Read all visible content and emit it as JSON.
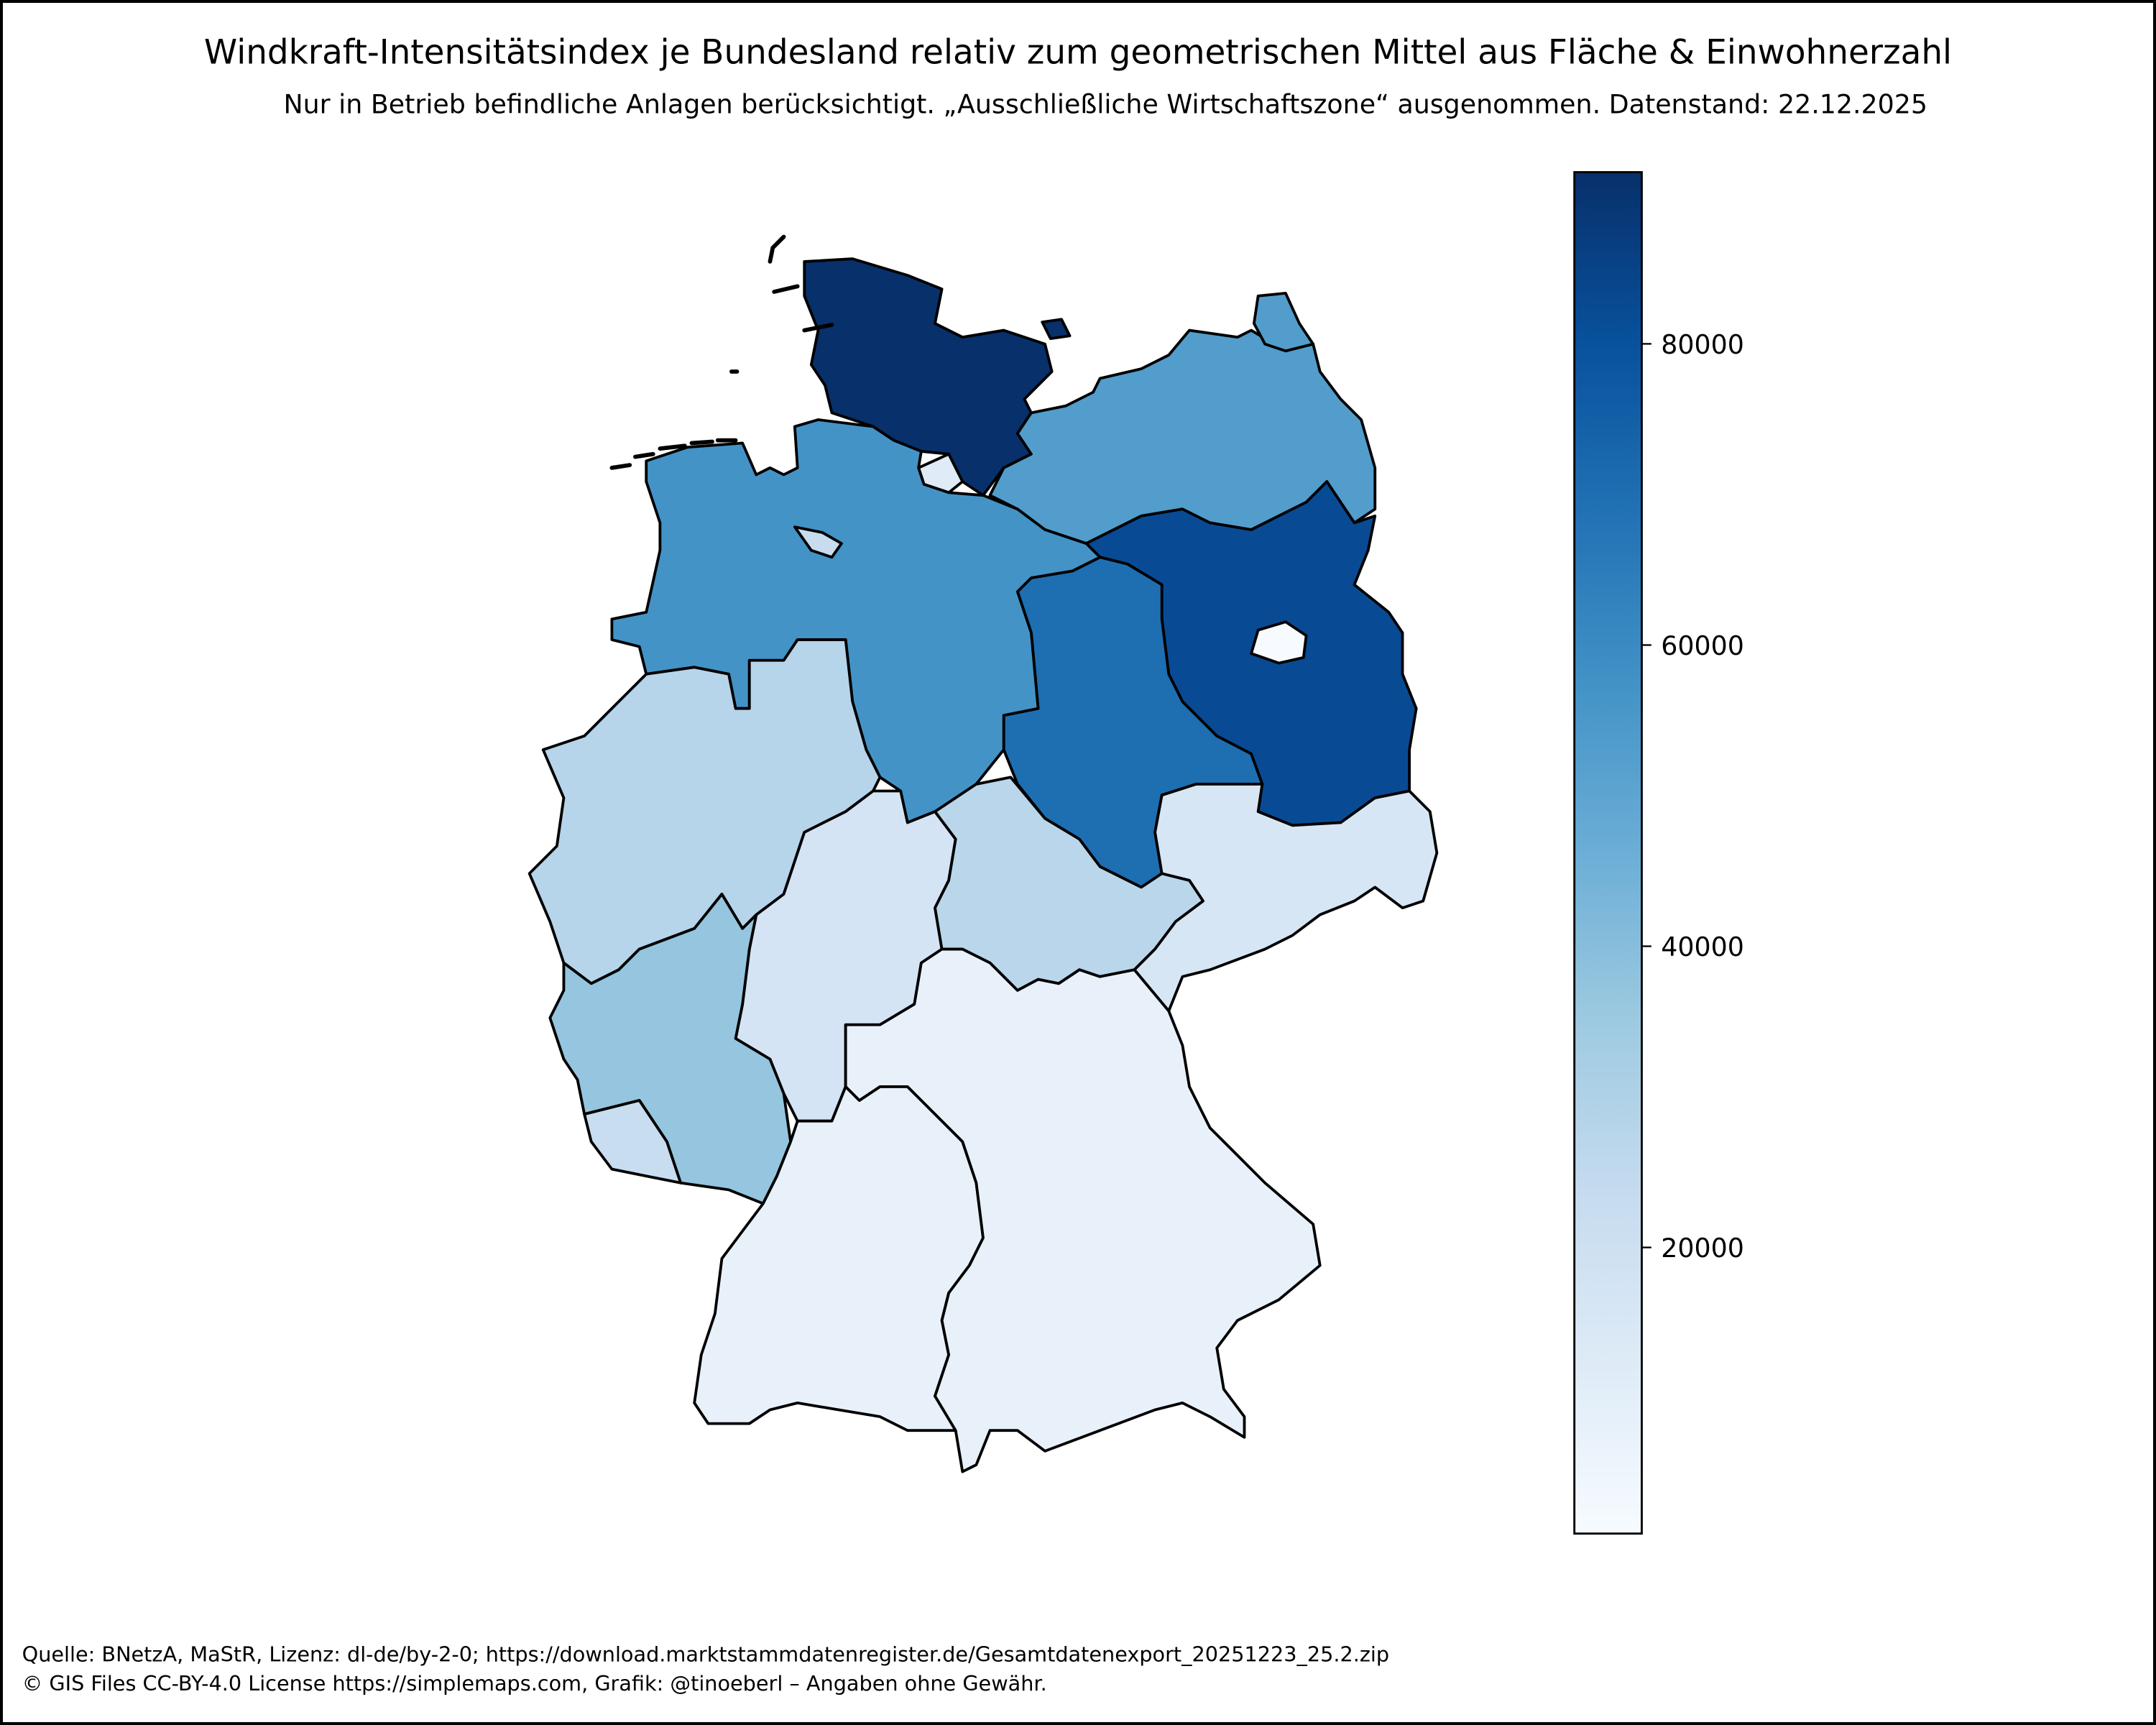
{
  "title": "Windkraft-Intensitätsindex je Bundesland relativ zum geometrischen Mittel aus Fläche & Einwohnerzahl",
  "subtitle": "Nur in Betrieb befindliche Anlagen berücksichtigt. „Ausschließliche Wirtschaftszone“ ausgenommen. Datenstand: 22.12.2025",
  "footer": {
    "line1": "Quelle: BNetzA, MaStR, Lizenz: dl-de/by-2-0; https://download.marktstammdatenregister.de/Gesamtdatenexport_20251223_25.2.zip",
    "line2": "© GIS Files CC-BY-4.0 License https://simplemaps.com, Grafik: @tinoeberl – Angaben ohne Gewähr."
  },
  "chart_data": {
    "type": "choropleth",
    "title": "Windkraft-Intensitätsindex je Bundesland relativ zum geometrischen Mittel aus Fläche & Einwohnerzahl",
    "colormap": "Blues",
    "colorbar": {
      "range": [
        1000,
        91400
      ],
      "ticks": [
        20000,
        40000,
        60000,
        80000
      ],
      "tick_labels": [
        "20000",
        "40000",
        "60000",
        "80000"
      ],
      "placement": "right"
    },
    "values": {
      "SH": 91400,
      "BB": 82000,
      "ST": 70000,
      "NI": 57000,
      "MV": 53000,
      "RP": 37000,
      "NW": 28000,
      "TH": 27000,
      "HB": 23000,
      "SL": 22000,
      "HE": 17000,
      "SN": 16000,
      "HH": 12000,
      "BY": 8000,
      "BW": 8000,
      "BE": 1000
    },
    "colors": {
      "outline": "#000000",
      "low": "#f7fbff",
      "high": "#08306b"
    }
  }
}
